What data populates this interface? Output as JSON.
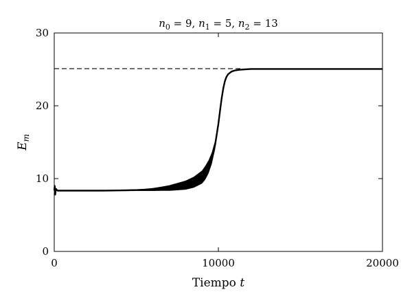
{
  "chart_data": {
    "type": "line",
    "title_parts": {
      "n0_sym": "n",
      "n0_sub": "0",
      "n0_val": " = 9, ",
      "n1_sym": "n",
      "n1_sub": "1",
      "n1_val": " = 5, ",
      "n2_sym": "n",
      "n2_sub": "2",
      "n2_val": " = 13"
    },
    "xlabel_text": "Tiempo ",
    "xlabel_var": "t",
    "ylabel_sym": "E",
    "ylabel_sub": "m",
    "xlim": [
      0,
      20000
    ],
    "ylim": [
      0,
      30
    ],
    "xticks": [
      0,
      10000,
      20000
    ],
    "xtick_labels": [
      "0",
      "10000",
      "20000"
    ],
    "yticks": [
      0,
      10,
      20,
      30
    ],
    "ytick_labels": [
      "0",
      "10",
      "20",
      "30"
    ],
    "grid": false,
    "reference_line": {
      "y": 25.1,
      "style": "dashed",
      "x_range": [
        0,
        11500
      ]
    },
    "series": [
      {
        "x": [
          0,
          30,
          60,
          100,
          200,
          1000,
          2000,
          3000,
          4000,
          5000,
          5500,
          6000,
          6500,
          7000,
          7500,
          8000,
          8500,
          9000,
          9200,
          9400,
          9600,
          9800,
          10000,
          10100,
          10200,
          10300,
          10400,
          10500,
          10600,
          10800,
          11000,
          11300,
          11600,
          12000,
          13000,
          15000,
          17000,
          20000
        ],
        "y": [
          8.4,
          9.0,
          7.8,
          8.6,
          8.35,
          8.35,
          8.35,
          8.35,
          8.38,
          8.42,
          8.45,
          8.5,
          8.6,
          8.7,
          8.9,
          9.1,
          9.5,
          10.2,
          10.8,
          11.6,
          12.8,
          14.6,
          17.5,
          19.3,
          21.0,
          22.4,
          23.4,
          24.0,
          24.35,
          24.7,
          24.85,
          24.95,
          25.0,
          25.05,
          25.05,
          25.05,
          25.05,
          25.05
        ],
        "band": [
          0,
          0,
          0,
          0,
          0,
          0.03,
          0.04,
          0.06,
          0.08,
          0.12,
          0.15,
          0.2,
          0.28,
          0.38,
          0.5,
          0.62,
          0.75,
          0.9,
          0.95,
          0.9,
          0.8,
          0.6,
          0.4,
          0.3,
          0.22,
          0.16,
          0.12,
          0.1,
          0.09,
          0.08,
          0.08,
          0.08,
          0.08,
          0.08,
          0.08,
          0.08,
          0.08,
          0.08
        ]
      }
    ]
  }
}
